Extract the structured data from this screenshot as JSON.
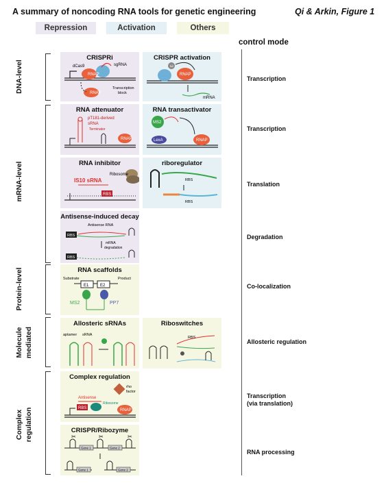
{
  "header": {
    "title": "A summary of noncoding RNA tools for genetic engineering",
    "author": "Qi & Arkin, Figure 1"
  },
  "legend": {
    "repression": "Repression",
    "activation": "Activation",
    "others": "Others"
  },
  "control_mode": {
    "heading": "control mode",
    "modes": [
      "Transcription",
      "Transcription",
      "Translation",
      "Degradation",
      "Co-localization",
      "Allosteric regulation",
      "Transcription\n(via translation)",
      "RNA processing"
    ]
  },
  "groups": [
    "DNA-level",
    "mRNA-level",
    "Protein-level",
    "Molecule mediated",
    "Complex regulation"
  ],
  "groups_split": {
    "molecule_1": "Molecule",
    "molecule_2": "mediated",
    "complex_1": "Complex",
    "complex_2": "regulation"
  },
  "panels": {
    "crispri": {
      "title": "CRISPRi",
      "labels": [
        "dCas9",
        "sgRNA",
        "RNAP",
        "RNAP",
        "Transcription",
        "block"
      ]
    },
    "crispr_act": {
      "title": "CRISPR activation",
      "labels": [
        "ω",
        "RNAP",
        "mRNA"
      ]
    },
    "attenuator": {
      "title": "RNA attenuator",
      "labels": [
        "pT181-derived",
        "sRNA",
        "Terminator",
        "RNAP"
      ]
    },
    "transactivator": {
      "title": "RNA transactivator",
      "labels": [
        "MS2",
        "LexA",
        "RNAP"
      ]
    },
    "inhibitor": {
      "title": "RNA inhibitor",
      "labels": [
        "Ribosome",
        "IS10 sRNA",
        "RBS"
      ]
    },
    "riboregulator": {
      "title": "riboregulator",
      "labels": [
        "RBS",
        "RBS"
      ]
    },
    "antisense": {
      "title": "Antisense-induced decay",
      "labels": [
        "Antisense RNA",
        "RBS",
        "mRNA",
        "degradation",
        "RBS"
      ]
    },
    "scaffolds": {
      "title": "RNA scaffolds",
      "labels": [
        "Substrate",
        "Product",
        "E1",
        "E2",
        "MS2",
        "PP7"
      ]
    },
    "allosteric": {
      "title": "Allosteric sRNAs",
      "labels": [
        "aptamer",
        "sRNA"
      ]
    },
    "riboswitches": {
      "title": "Riboswitches",
      "labels": [
        "RBS"
      ]
    },
    "complex": {
      "title": "Complex regulation",
      "labels": [
        "rho",
        "factor",
        "Antisense",
        "RBS",
        "Ribosome",
        "RNAP"
      ]
    },
    "ribozyme": {
      "title": "CRISPR/Ribozyme",
      "labels": [
        "Gene 1",
        "Gene 2",
        "Gene 1",
        "Gene 2"
      ]
    }
  },
  "colors": {
    "repression_bg": "#ece7f1",
    "activation_bg": "#e6f1f6",
    "others_bg": "#f6f7e2",
    "rnap": "#e8603c",
    "dcas9": "#6fb0d6",
    "rna_red": "#e0302c",
    "rna_green": "#3aa64a"
  }
}
